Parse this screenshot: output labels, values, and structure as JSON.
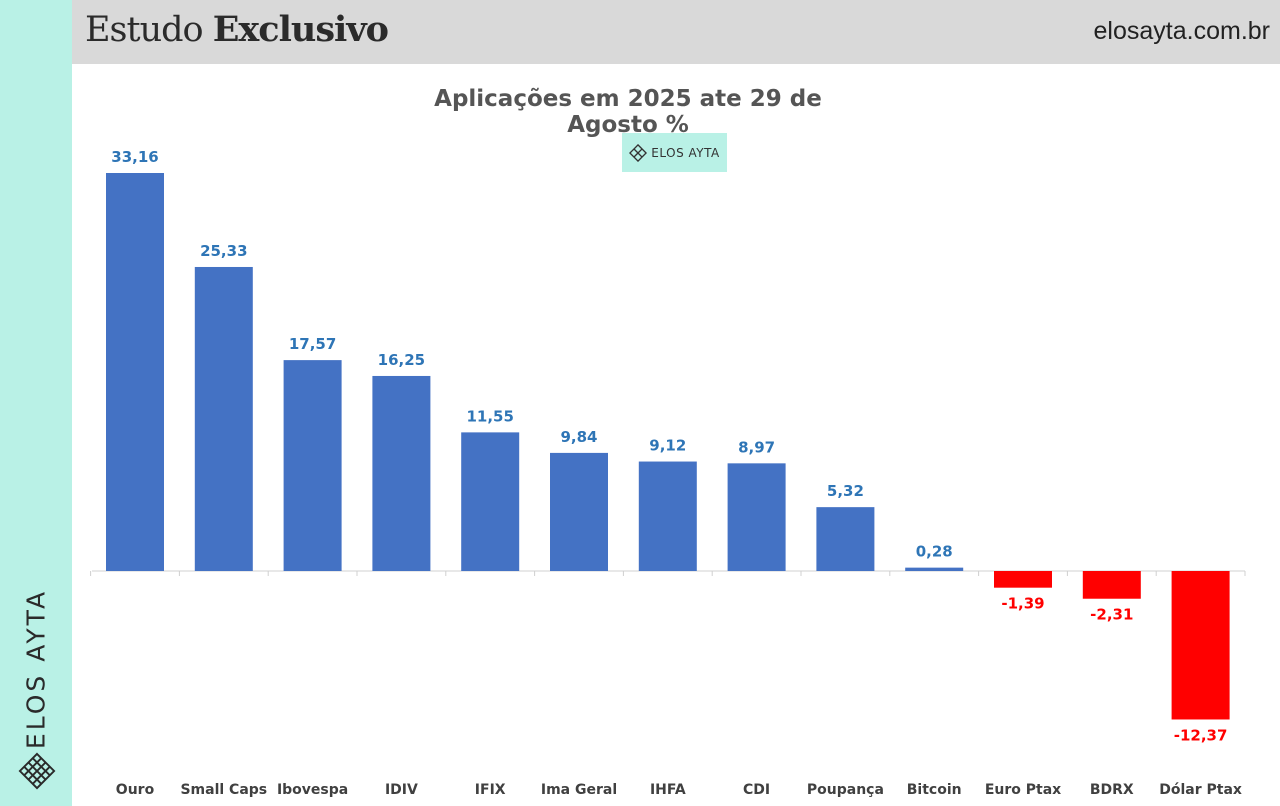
{
  "header": {
    "title_regular": "Estudo",
    "title_bold": "Exclusivo",
    "site": "elosayta.com.br"
  },
  "sidebar": {
    "brand": "ELOS AYTA",
    "logo_icon": "lattice-logo-icon"
  },
  "watermark": {
    "text": "ELOS AYTA",
    "icon": "lattice-logo-icon"
  },
  "colors": {
    "sidebar_bg": "#b9f1e6",
    "header_bg": "#d9d9d9",
    "positive_bar": "#4472c4",
    "negative_bar": "#ff0000",
    "positive_label": "#2e75b6",
    "negative_label": "#ff0000"
  },
  "chart_data": {
    "type": "bar",
    "title": "Aplicações em 2025 ate 29 de Agosto %",
    "categories": [
      "Ouro",
      "Small Caps",
      "Ibovespa",
      "IDIV",
      "IFIX",
      "Ima Geral",
      "IHFA",
      "CDI",
      "Poupança",
      "Bitcoin",
      "Euro Ptax",
      "BDRX",
      "Dólar Ptax"
    ],
    "values": [
      33.16,
      25.33,
      17.57,
      16.25,
      11.55,
      9.84,
      9.12,
      8.97,
      5.32,
      0.28,
      -1.39,
      -2.31,
      -12.37
    ],
    "value_labels": [
      "33,16",
      "25,33",
      "17,57",
      "16,25",
      "11,55",
      "9,84",
      "9,12",
      "8,97",
      "5,32",
      "0,28",
      "-1,39",
      "-2,31",
      "-12,37"
    ],
    "xlabel": "",
    "ylabel": "",
    "ylim": [
      -12.37,
      33.16
    ],
    "grid": false,
    "legend": "none"
  }
}
